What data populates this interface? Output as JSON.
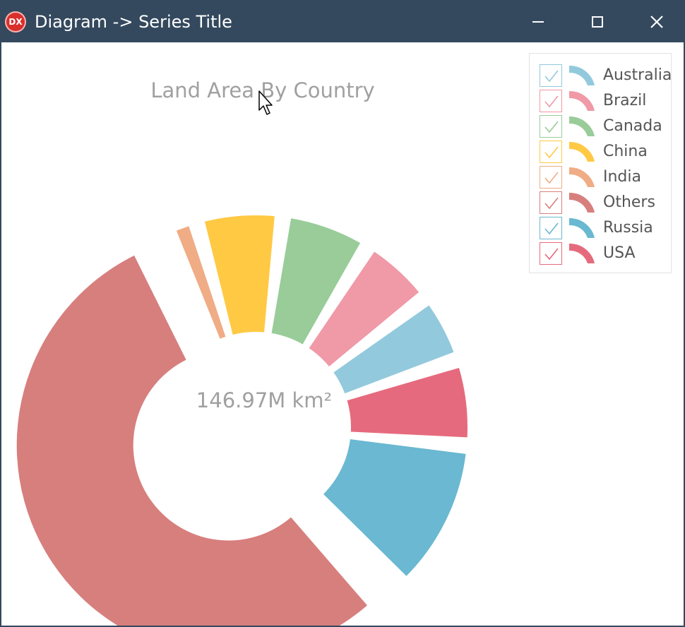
{
  "window": {
    "title": "Diagram -> Series Title",
    "app_icon_text": "DX",
    "buttons": [
      "minimize",
      "maximize",
      "close"
    ]
  },
  "chart_data": {
    "type": "pie",
    "variant": "doughnut",
    "title": "Land Area By Country",
    "total_label": "146.97M km²",
    "legend_position": "top-right",
    "slices": [
      {
        "name": "Russia",
        "value": 17.1,
        "color": "#6ab8d1"
      },
      {
        "name": "Others",
        "value": 81.2,
        "color": "#d77f7d"
      },
      {
        "name": "India",
        "value": 3.29,
        "color": "#f0ac85"
      },
      {
        "name": "China",
        "value": 9.6,
        "color": "#ffc944"
      },
      {
        "name": "Canada",
        "value": 9.98,
        "color": "#99cc99"
      },
      {
        "name": "Brazil",
        "value": 8.5,
        "color": "#f099a7"
      },
      {
        "name": "Australia",
        "value": 7.69,
        "color": "#93c9dc"
      },
      {
        "name": "USA",
        "value": 9.6,
        "color": "#e66a7d"
      }
    ],
    "legend": [
      {
        "label": "Australia",
        "color": "#93c9dc",
        "checked": true
      },
      {
        "label": "Brazil",
        "color": "#f099a7",
        "checked": true
      },
      {
        "label": "Canada",
        "color": "#99cc99",
        "checked": true
      },
      {
        "label": "China",
        "color": "#ffc944",
        "checked": true
      },
      {
        "label": "India",
        "color": "#f0ac85",
        "checked": true
      },
      {
        "label": "Others",
        "color": "#d77f7d",
        "checked": true
      },
      {
        "label": "Russia",
        "color": "#6ab8d1",
        "checked": true
      },
      {
        "label": "USA",
        "color": "#e66a7d",
        "checked": true
      }
    ]
  }
}
